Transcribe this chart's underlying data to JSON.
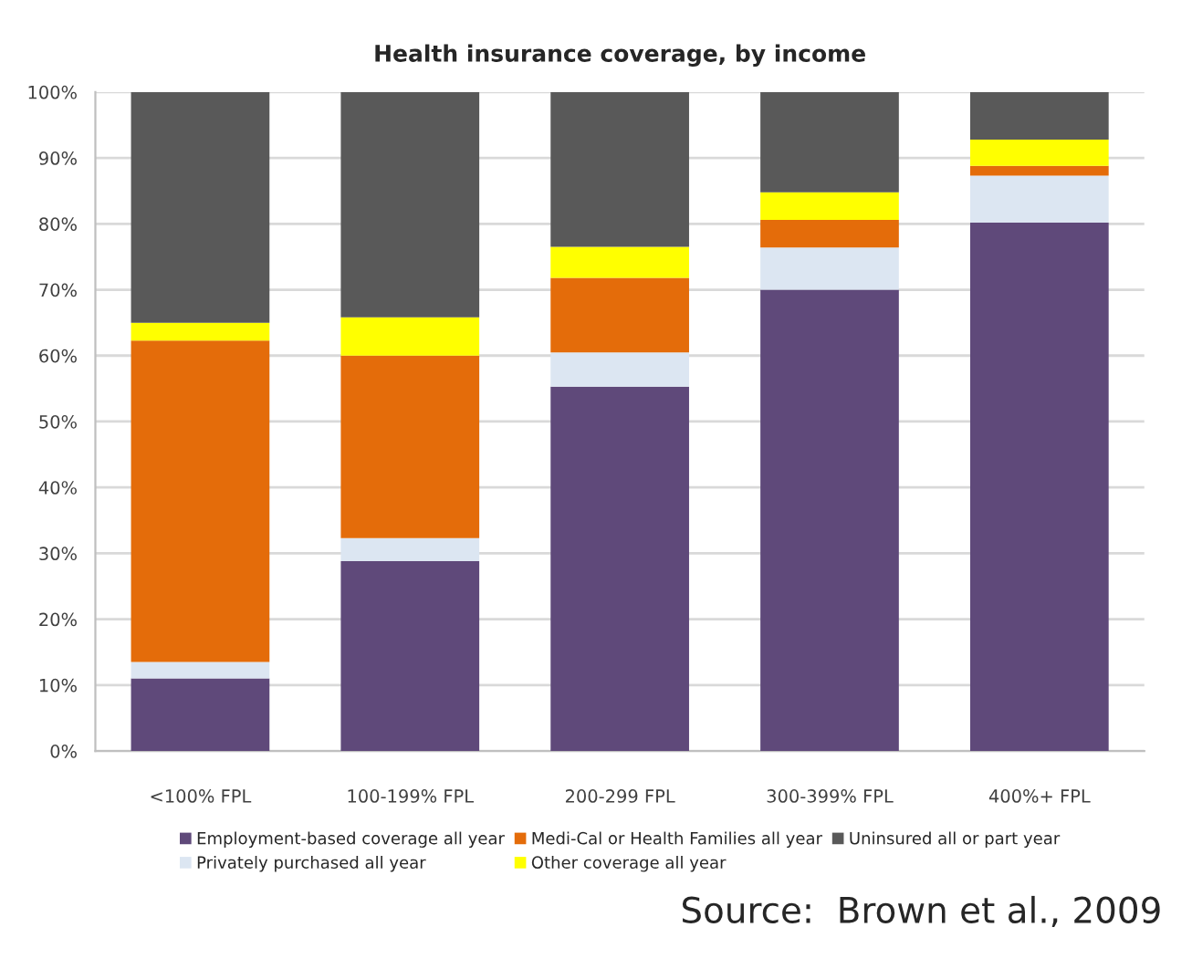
{
  "chart_data": {
    "type": "bar",
    "title": "Health insurance coverage, by income",
    "stacked": true,
    "categories": [
      "<100% FPL",
      "100-199% FPL",
      "200-299 FPL",
      "300-399% FPL",
      "400%+ FPL"
    ],
    "series": [
      {
        "name": "Employment-based coverage all year",
        "color": "#5f497a",
        "values": [
          11,
          28.8,
          55.3,
          70,
          80.2
        ]
      },
      {
        "name": "Privately purchased all year",
        "color": "#dce6f2",
        "values": [
          2.5,
          3.5,
          5.2,
          6.4,
          7.1
        ]
      },
      {
        "name": "Medi-Cal or Health Families all year",
        "color": "#e46c0a",
        "values": [
          48.8,
          27.7,
          11.3,
          4.2,
          1.5
        ]
      },
      {
        "name": "Other coverage all year",
        "color": "#ffff00",
        "values": [
          2.7,
          5.8,
          4.7,
          4.2,
          4.0
        ]
      },
      {
        "name": "Uninsured all or part year",
        "color": "#595959",
        "values": [
          35,
          34.2,
          23.5,
          15.2,
          7.2
        ]
      }
    ],
    "ylim": [
      0,
      100
    ],
    "yticks": [
      {
        "value": 0,
        "label": "0%"
      },
      {
        "value": 10,
        "label": "10%"
      },
      {
        "value": 20,
        "label": "20%"
      },
      {
        "value": 30,
        "label": "30%"
      },
      {
        "value": 40,
        "label": "40%"
      },
      {
        "value": 50,
        "label": "50%"
      },
      {
        "value": 60,
        "label": "60%"
      },
      {
        "value": 70,
        "label": "70%"
      },
      {
        "value": 80,
        "label": "80%"
      },
      {
        "value": 90,
        "label": "90%"
      },
      {
        "value": 100,
        "label": "100%"
      }
    ],
    "grid": "y",
    "legend": "bottom",
    "annotations": [
      "Source:  Brown et al., 2009"
    ]
  }
}
